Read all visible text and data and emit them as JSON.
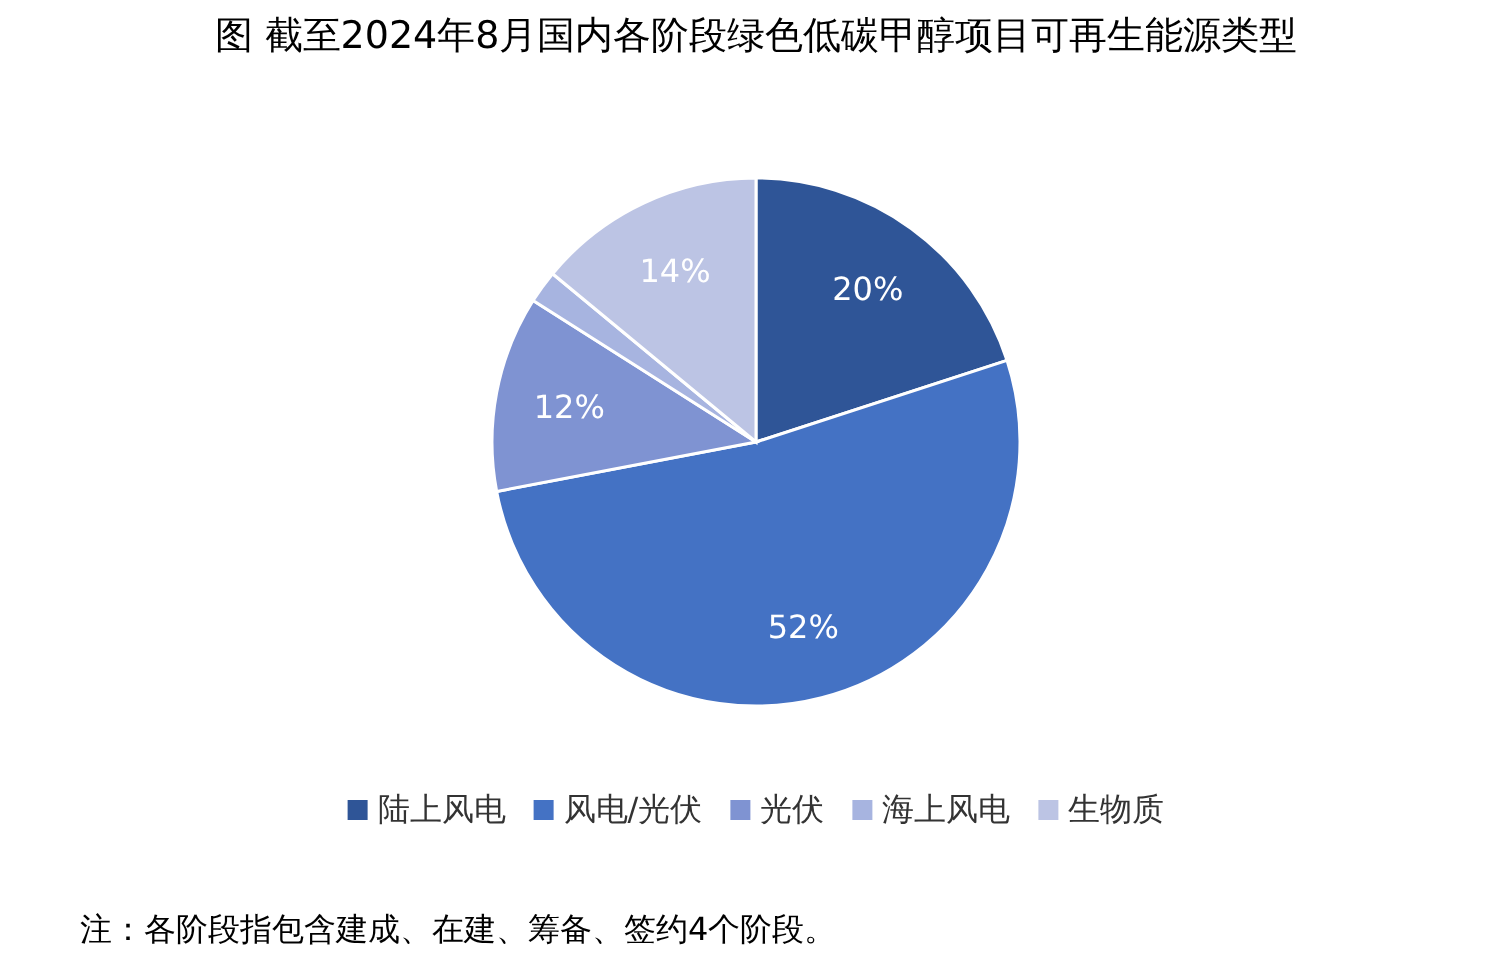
{
  "chart_data": {
    "type": "pie",
    "title": "图 截至2024年8月国内各阶段绿色低碳甲醇项目可再生能源类型",
    "categories": [
      "陆上风电",
      "风电/光伏",
      "光伏",
      "海上风电",
      "生物质"
    ],
    "values": [
      20,
      52,
      12,
      2,
      14
    ],
    "colors": [
      "#2f5597",
      "#4472c4",
      "#7f93d2",
      "#a7b4e0",
      "#bcc4e4"
    ],
    "value_labels": [
      "20%",
      "52%",
      "12%",
      null,
      "14%"
    ],
    "legend": "bottom",
    "annotations": [
      "注：各阶段指包含建成、在建、筹备、签约4个阶段。"
    ]
  }
}
